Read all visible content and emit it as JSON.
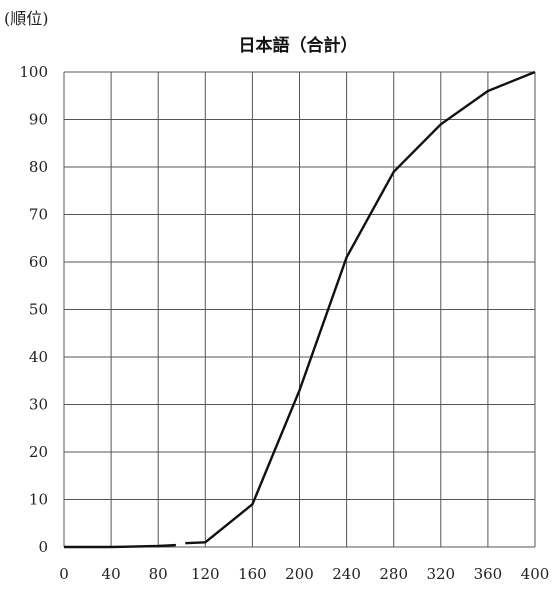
{
  "chart_data": {
    "type": "line",
    "title": "日本語（合計）",
    "xlabel": "",
    "ylabel": "(順位)",
    "xlim": [
      0,
      400
    ],
    "ylim": [
      0,
      100
    ],
    "x_ticks": [
      0,
      40,
      80,
      120,
      160,
      200,
      240,
      280,
      320,
      360,
      400
    ],
    "y_ticks": [
      0,
      10,
      20,
      30,
      40,
      50,
      60,
      70,
      80,
      90,
      100
    ],
    "grid": true,
    "series": [
      {
        "segments": [
          [
            [
              0,
              0
            ],
            [
              40,
              0
            ],
            [
              80,
              0.2
            ],
            [
              95,
              0.4
            ]
          ],
          [
            [
              103,
              0.8
            ],
            [
              120,
              1
            ],
            [
              160,
              9
            ],
            [
              200,
              33
            ],
            [
              240,
              61
            ],
            [
              280,
              79
            ],
            [
              320,
              89
            ],
            [
              360,
              96
            ],
            [
              400,
              100
            ]
          ]
        ]
      }
    ],
    "colors": {
      "line": "#111111",
      "grid": "#555555"
    }
  }
}
